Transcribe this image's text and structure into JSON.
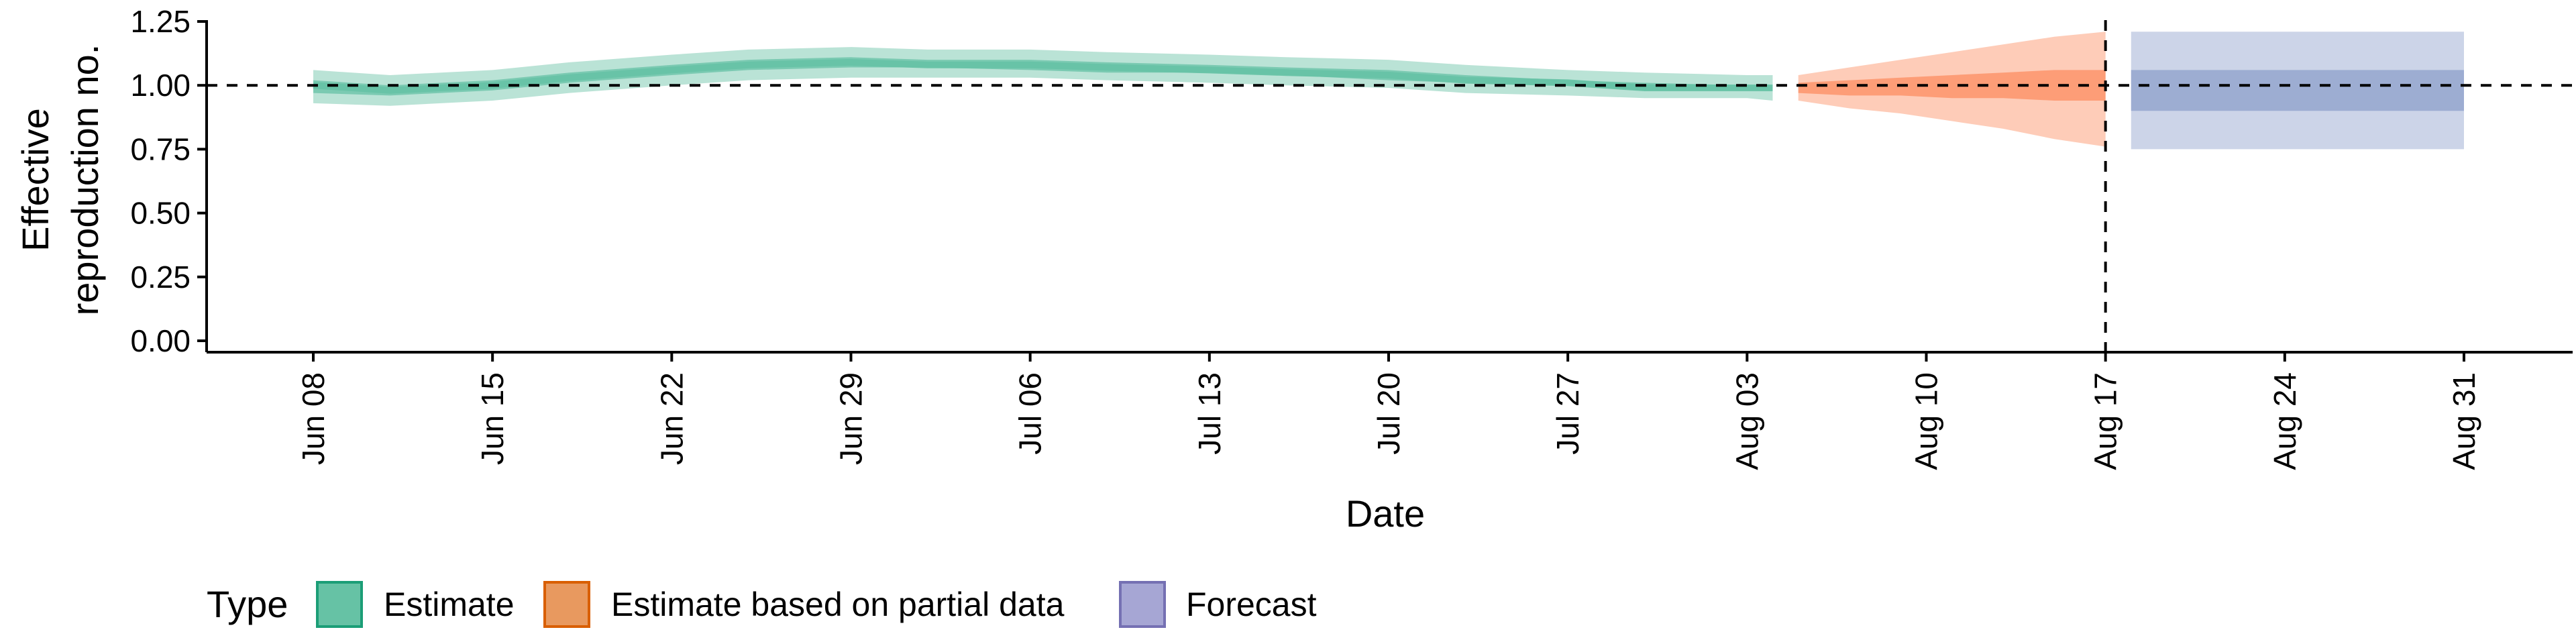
{
  "chart_data": {
    "type": "area",
    "title": "",
    "xlabel": "Date",
    "ylabel_lines": [
      "Effective",
      "reproduction no."
    ],
    "ylim": [
      0,
      1.25
    ],
    "yticks": [
      0.0,
      0.25,
      0.5,
      0.75,
      1.0,
      1.25
    ],
    "ytick_labels": [
      "0.00",
      "0.25",
      "0.50",
      "0.75",
      "1.00",
      "1.25"
    ],
    "xlim": [
      "2020-06-03",
      "2020-09-05"
    ],
    "xticks": [
      "2020-06-08",
      "2020-06-15",
      "2020-06-22",
      "2020-06-29",
      "2020-07-06",
      "2020-07-13",
      "2020-07-20",
      "2020-07-27",
      "2020-08-03",
      "2020-08-10",
      "2020-08-17",
      "2020-08-24",
      "2020-08-31"
    ],
    "xtick_labels": [
      "Jun 08",
      "Jun 15",
      "Jun 22",
      "Jun 29",
      "Jul 06",
      "Jul 13",
      "Jul 20",
      "Jul 27",
      "Aug 03",
      "Aug 10",
      "Aug 17",
      "Aug 24",
      "Aug 31"
    ],
    "reference_hline": 1.0,
    "reference_vline": "2020-08-17",
    "grid": false,
    "legend": {
      "title": "Type",
      "placement": "bottom",
      "entries": [
        "Estimate",
        "Estimate based on partial data",
        "Forecast"
      ]
    },
    "series": [
      {
        "name": "Estimate",
        "color": "#66c2a5",
        "border": "#1b9e77",
        "x": [
          "2020-06-08",
          "2020-06-11",
          "2020-06-15",
          "2020-06-18",
          "2020-06-22",
          "2020-06-25",
          "2020-06-29",
          "2020-07-02",
          "2020-07-06",
          "2020-07-09",
          "2020-07-13",
          "2020-07-16",
          "2020-07-20",
          "2020-07-23",
          "2020-07-27",
          "2020-07-30",
          "2020-08-03",
          "2020-08-04"
        ],
        "median": [
          1.0,
          0.98,
          1.0,
          1.03,
          1.06,
          1.08,
          1.09,
          1.08,
          1.08,
          1.07,
          1.06,
          1.05,
          1.04,
          1.02,
          1.01,
          0.99,
          0.99,
          0.99
        ],
        "lower_50": [
          0.97,
          0.96,
          0.98,
          1.01,
          1.04,
          1.06,
          1.07,
          1.07,
          1.06,
          1.05,
          1.05,
          1.04,
          1.02,
          1.01,
          1.0,
          0.98,
          0.98,
          0.98
        ],
        "upper_50": [
          1.02,
          1.0,
          1.02,
          1.05,
          1.08,
          1.1,
          1.11,
          1.1,
          1.1,
          1.09,
          1.08,
          1.07,
          1.06,
          1.04,
          1.02,
          1.01,
          1.0,
          1.0
        ],
        "lower_90": [
          0.93,
          0.92,
          0.94,
          0.97,
          1.0,
          1.02,
          1.03,
          1.03,
          1.03,
          1.02,
          1.01,
          1.0,
          0.99,
          0.97,
          0.96,
          0.95,
          0.95,
          0.94
        ],
        "upper_90": [
          1.06,
          1.04,
          1.06,
          1.09,
          1.12,
          1.14,
          1.15,
          1.14,
          1.14,
          1.13,
          1.12,
          1.11,
          1.1,
          1.08,
          1.06,
          1.05,
          1.04,
          1.04
        ]
      },
      {
        "name": "Estimate based on partial data",
        "color": "#fc8d62",
        "border": "#d95f02",
        "x": [
          "2020-08-05",
          "2020-08-07",
          "2020-08-09",
          "2020-08-11",
          "2020-08-13",
          "2020-08-15",
          "2020-08-17"
        ],
        "median": [
          0.99,
          0.99,
          0.99,
          1.0,
          1.0,
          1.01,
          1.01
        ],
        "lower_50": [
          0.97,
          0.96,
          0.96,
          0.95,
          0.95,
          0.94,
          0.94
        ],
        "upper_50": [
          1.01,
          1.02,
          1.03,
          1.04,
          1.05,
          1.06,
          1.06
        ],
        "lower_90": [
          0.94,
          0.91,
          0.89,
          0.86,
          0.83,
          0.79,
          0.76
        ],
        "upper_90": [
          1.04,
          1.07,
          1.1,
          1.13,
          1.16,
          1.19,
          1.21
        ]
      },
      {
        "name": "Forecast",
        "color": "#8da0cb",
        "border": "#7570b3",
        "x": [
          "2020-08-18",
          "2020-08-31"
        ],
        "median": [
          0.98,
          0.98
        ],
        "lower_50": [
          0.9,
          0.9
        ],
        "upper_50": [
          1.06,
          1.06
        ],
        "lower_90": [
          0.75,
          0.75
        ],
        "upper_90": [
          1.21,
          1.21
        ]
      }
    ]
  }
}
